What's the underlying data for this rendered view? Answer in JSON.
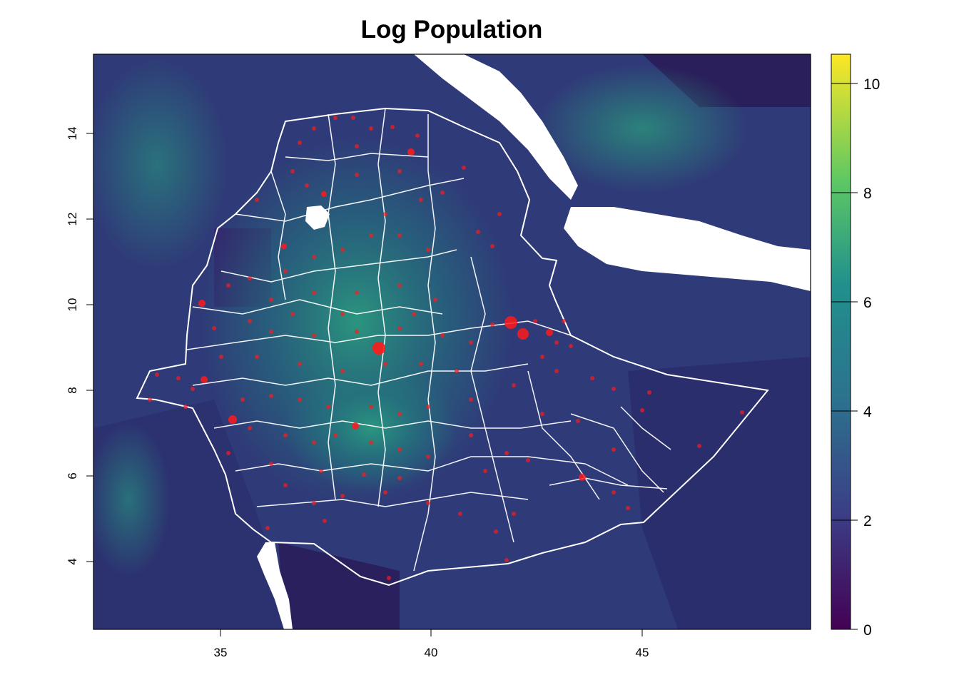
{
  "title": "Log Population",
  "colors": {
    "background_low": "#2e1c5c",
    "boundary": "#ffffff",
    "settlement_points": "#ff1a1a",
    "water": "#ffffff",
    "frame": "#000000"
  },
  "map": {
    "x_ticks": [
      "35",
      "40",
      "45"
    ],
    "y_ticks": [
      "4",
      "6",
      "8",
      "10",
      "12",
      "14"
    ],
    "x_tick_values": [
      35,
      40,
      45
    ],
    "y_tick_values": [
      4,
      6,
      8,
      10,
      12,
      14
    ],
    "x_range": [
      32,
      49
    ],
    "y_range": [
      2.5,
      15.9
    ]
  },
  "legend": {
    "labels": [
      "0",
      "2",
      "4",
      "6",
      "8",
      "10"
    ],
    "values": [
      0,
      2,
      4,
      6,
      8,
      10
    ],
    "range": [
      0,
      10.5
    ],
    "colormap": [
      "#440154",
      "#3b528b",
      "#21908d",
      "#5dc863",
      "#fde725"
    ]
  },
  "chart_data": {
    "type": "heatmap",
    "title": "Log Population",
    "xlabel": "",
    "ylabel": "",
    "xlim": [
      32,
      49
    ],
    "ylim": [
      2.5,
      15.9
    ],
    "x_ticks": [
      35,
      40,
      45
    ],
    "y_ticks": [
      4,
      6,
      8,
      10,
      12,
      14
    ],
    "colorbar": {
      "min": 0,
      "max": 10.5,
      "ticks": [
        0,
        2,
        4,
        6,
        8,
        10
      ],
      "palette": "viridis"
    },
    "point_clusters": [
      {
        "lon": 38.75,
        "lat": 9.0
      },
      {
        "lon": 41.9,
        "lat": 9.6
      },
      {
        "lon": 42.1,
        "lat": 9.3
      },
      {
        "lon": 39.5,
        "lat": 13.5
      },
      {
        "lon": 37.4,
        "lat": 11.6
      },
      {
        "lon": 34.6,
        "lat": 8.25
      },
      {
        "lon": 34.5,
        "lat": 10.05
      },
      {
        "lon": 35.3,
        "lat": 7.35
      },
      {
        "lon": 38.5,
        "lat": 7.05
      },
      {
        "lon": 43.5,
        "lat": 6.0
      },
      {
        "lon": 37.35,
        "lat": 11.05
      }
    ]
  }
}
